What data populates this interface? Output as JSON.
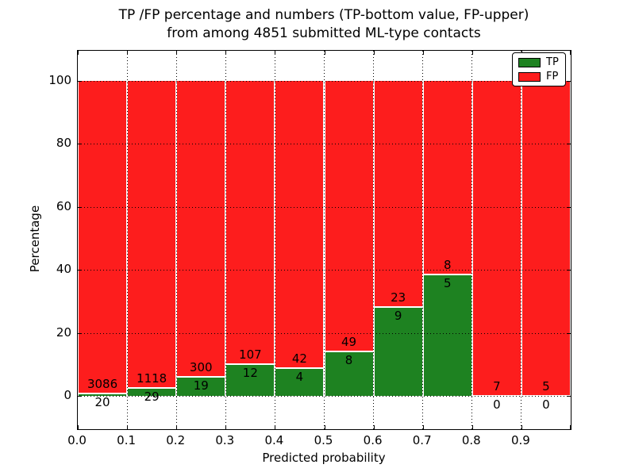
{
  "title": {
    "line1": "TP /FP percentage and numbers (TP-bottom value, FP-upper)",
    "line2": "from among 4851 submitted ML-type contacts"
  },
  "axes": {
    "xlabel": "Predicted probability",
    "ylabel": "Percentage",
    "xtick_labels": [
      "0.0",
      "0.1",
      "0.2",
      "0.3",
      "0.4",
      "0.5",
      "0.6",
      "0.7",
      "0.8",
      "0.9"
    ],
    "ytick_labels": [
      "0",
      "20",
      "40",
      "60",
      "80",
      "100"
    ],
    "ytick_values": [
      0,
      20,
      40,
      60,
      80,
      100
    ]
  },
  "legend": {
    "items": [
      {
        "label": "TP",
        "color": "#1e8221"
      },
      {
        "label": "FP",
        "color": "#fd1d1d"
      }
    ]
  },
  "chart_data": {
    "type": "bar",
    "stacked": true,
    "title": "TP /FP percentage and numbers (TP-bottom value, FP-upper) from among 4851 submitted ML-type contacts",
    "xlabel": "Predicted probability",
    "ylabel": "Percentage",
    "total_contacts": 4851,
    "bin_edges": [
      0.0,
      0.1,
      0.2,
      0.3,
      0.4,
      0.5,
      0.6,
      0.7,
      0.8,
      0.9,
      1.0
    ],
    "categories": [
      "0.0",
      "0.1",
      "0.2",
      "0.3",
      "0.4",
      "0.5",
      "0.6",
      "0.7",
      "0.8",
      "0.9"
    ],
    "series": [
      {
        "name": "TP",
        "color": "#1e8221",
        "counts": [
          20,
          29,
          19,
          12,
          4,
          8,
          9,
          5,
          0,
          0
        ]
      },
      {
        "name": "FP",
        "color": "#fd1d1d",
        "counts": [
          3086,
          1118,
          300,
          107,
          42,
          49,
          23,
          8,
          7,
          5
        ]
      }
    ],
    "tp_percent_of_bin": [
      0.64,
      2.53,
      5.96,
      10.08,
      8.7,
      14.04,
      28.13,
      38.46,
      0.0,
      0.0
    ],
    "ylim": [
      -10.5,
      110
    ],
    "xlim": [
      0.0,
      1.0
    ],
    "grid": "dotted",
    "legend_position": "upper right",
    "bar_label_rule": "FP count printed just above the TP/FP boundary, TP count just below it"
  }
}
